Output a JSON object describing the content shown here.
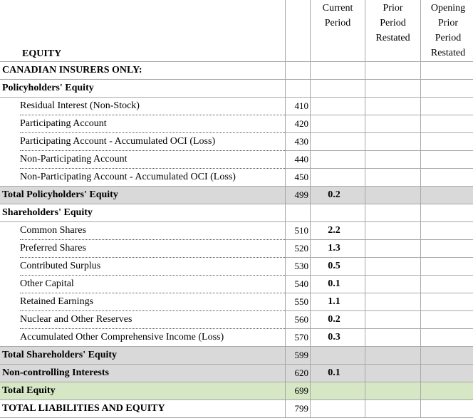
{
  "headers": {
    "current": [
      "Current",
      "Period"
    ],
    "prior": [
      "Prior",
      "Period",
      "Restated"
    ],
    "opening": [
      "Opening",
      "Prior",
      "Period",
      "Restated"
    ]
  },
  "sections": {
    "equity": "EQUITY",
    "canadian": "CANADIAN INSURERS ONLY:",
    "policyholders": "Policyholders' Equity",
    "shareholders": "Shareholders' Equity"
  },
  "policyholders_items": [
    {
      "label": "Residual Interest (Non-Stock)",
      "code": "410",
      "current": "",
      "prior": "",
      "opening": ""
    },
    {
      "label": "Participating Account",
      "code": "420",
      "current": "",
      "prior": "",
      "opening": ""
    },
    {
      "label": "Participating Account - Accumulated OCI (Loss)",
      "code": "430",
      "current": "",
      "prior": "",
      "opening": ""
    },
    {
      "label": "Non-Participating Account",
      "code": "440",
      "current": "",
      "prior": "",
      "opening": ""
    },
    {
      "label": "Non-Participating Account - Accumulated OCI (Loss)",
      "code": "450",
      "current": "",
      "prior": "",
      "opening": ""
    }
  ],
  "total_policyholders": {
    "label": "Total Policyholders' Equity",
    "code": "499",
    "current": "0.2",
    "prior": "",
    "opening": ""
  },
  "shareholders_items": [
    {
      "label": "Common Shares",
      "code": "510",
      "current": "2.2",
      "prior": "",
      "opening": ""
    },
    {
      "label": "Preferred Shares",
      "code": "520",
      "current": "1.3",
      "prior": "",
      "opening": ""
    },
    {
      "label": "Contributed Surplus",
      "code": "530",
      "current": "0.5",
      "prior": "",
      "opening": ""
    },
    {
      "label": "Other Capital",
      "code": "540",
      "current": "0.1",
      "prior": "",
      "opening": ""
    },
    {
      "label": "Retained Earnings",
      "code": "550",
      "current": "1.1",
      "prior": "",
      "opening": ""
    },
    {
      "label": "Nuclear and Other Reserves",
      "code": "560",
      "current": "0.2",
      "prior": "",
      "opening": ""
    },
    {
      "label": "Accumulated Other Comprehensive Income (Loss)",
      "code": "570",
      "current": "0.3",
      "prior": "",
      "opening": ""
    }
  ],
  "total_shareholders": {
    "label": "Total Shareholders' Equity",
    "code": "599",
    "current": "",
    "prior": "",
    "opening": ""
  },
  "noncontrolling": {
    "label": "Non-controlling Interests",
    "code": "620",
    "current": "0.1",
    "prior": "",
    "opening": ""
  },
  "total_equity": {
    "label": "Total Equity",
    "code": "699",
    "current": "",
    "prior": "",
    "opening": ""
  },
  "total_liabilities": {
    "label": "TOTAL LIABILITIES AND EQUITY",
    "code": "799",
    "current": "",
    "prior": "",
    "opening": ""
  },
  "colors": {
    "total_grey": "#d9d9d9",
    "total_green": "#d6e7c5",
    "grid": "#a8a8a8"
  }
}
